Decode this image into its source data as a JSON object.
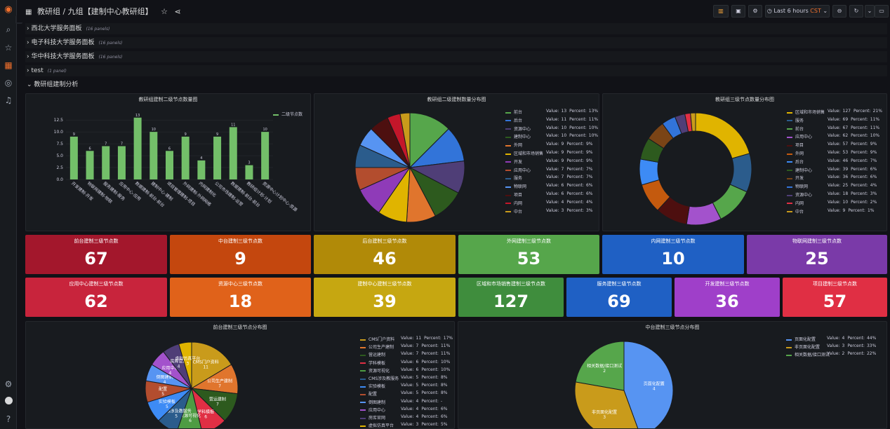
{
  "app": {
    "breadcrumb": "教研组 / 九组【建制中心教研组】",
    "time_range": "Last 6 hours",
    "timezone": "CST"
  },
  "rows": [
    {
      "title": "西北大学服务面板",
      "count": "(16 panels)"
    },
    {
      "title": "电子科技大学服务面板",
      "count": "(16 panels)"
    },
    {
      "title": "华中科技大学服务面板",
      "count": "(16 panels)"
    },
    {
      "title": "test",
      "count": "(1 panel)"
    },
    {
      "title": "教研组建制分析",
      "count": ""
    }
  ],
  "charts": {
    "bar": {
      "title": "教研组建制二级节点数量图",
      "legend": "二级节点数",
      "color": "#73bf69",
      "yticks": [
        "0.0",
        "2.5",
        "5.0",
        "7.5",
        "10.0",
        "12.5"
      ],
      "ymax": 14,
      "categories": [
        "开发建制-开发",
        "物联网建制-物联",
        "服务建制-服务",
        "应用中心-应用",
        "数据建制-前台-前台",
        "建制中心-建制",
        "项目管理建制-项目",
        "外网建制-外网网络",
        "内网建制化",
        "公司市场建制-运营",
        "数据建制-前台-前台",
        "教研组计划-计划",
        "资源中心计划中心-资源"
      ],
      "values": [
        9,
        6,
        7,
        7,
        13,
        10,
        6,
        9,
        4,
        9,
        11,
        3,
        10
      ]
    },
    "pie1": {
      "title": "教研组二级建制数量分布图",
      "slices": [
        {
          "name": "前台",
          "value": 13,
          "percent": "13%",
          "color": "#56a64b"
        },
        {
          "name": "后台",
          "value": 11,
          "percent": "11%",
          "color": "#3274d9"
        },
        {
          "name": "资源中心",
          "value": 10,
          "percent": "10%",
          "color": "#4f3e77"
        },
        {
          "name": "建制中心",
          "value": 10,
          "percent": "10%",
          "color": "#2d5a1e"
        },
        {
          "name": "外网",
          "value": 9,
          "percent": "9%",
          "color": "#e0752d"
        },
        {
          "name": "区域和市场销售",
          "value": 9,
          "percent": "9%",
          "color": "#e0b400"
        },
        {
          "name": "开发",
          "value": 9,
          "percent": "9%",
          "color": "#8f3bb8"
        },
        {
          "name": "应用中心",
          "value": 7,
          "percent": "7%",
          "color": "#b34d2e"
        },
        {
          "name": "服务",
          "value": 7,
          "percent": "7%",
          "color": "#2b5c8c"
        },
        {
          "name": "物联网",
          "value": 6,
          "percent": "6%",
          "color": "#5794f2"
        },
        {
          "name": "项目",
          "value": 6,
          "percent": "6%",
          "color": "#4d0f0f"
        },
        {
          "name": "内网",
          "value": 4,
          "percent": "4%",
          "color": "#c4162a"
        },
        {
          "name": "中台",
          "value": 3,
          "percent": "3%",
          "color": "#c99b1b"
        }
      ]
    },
    "donut": {
      "title": "教研组三级节点数量分布图",
      "slices": [
        {
          "name": "区域和市场销售",
          "value": 127,
          "percent": "21%",
          "color": "#e0b400"
        },
        {
          "name": "服务",
          "value": 69,
          "percent": "11%",
          "color": "#2b5c8c"
        },
        {
          "name": "前台",
          "value": 67,
          "percent": "11%",
          "color": "#56a64b"
        },
        {
          "name": "应用中心",
          "value": 62,
          "percent": "10%",
          "color": "#a352cc"
        },
        {
          "name": "项目",
          "value": 57,
          "percent": "9%",
          "color": "#4d0f0f"
        },
        {
          "name": "外网",
          "value": 53,
          "percent": "9%",
          "color": "#c45a0e"
        },
        {
          "name": "后台",
          "value": 46,
          "percent": "7%",
          "color": "#3d8bf5"
        },
        {
          "name": "建制中心",
          "value": 39,
          "percent": "6%",
          "color": "#2d5a1e"
        },
        {
          "name": "开发",
          "value": 36,
          "percent": "6%",
          "color": "#7a4416"
        },
        {
          "name": "物联网",
          "value": 25,
          "percent": "4%",
          "color": "#3274d9"
        },
        {
          "name": "资源中心",
          "value": 18,
          "percent": "3%",
          "color": "#4f3e77"
        },
        {
          "name": "内网",
          "value": 10,
          "percent": "2%",
          "color": "#e02f44"
        },
        {
          "name": "中台",
          "value": 9,
          "percent": "1%",
          "color": "#c99b1b"
        }
      ]
    },
    "pie2": {
      "title": "前台建制三级节点分布图",
      "slices": [
        {
          "name": "CMS门户资料",
          "value": 11,
          "percent": "17%",
          "color": "#c99b1b"
        },
        {
          "name": "公司生产建制",
          "value": 7,
          "percent": "11%",
          "color": "#e0752d"
        },
        {
          "name": "营运建制",
          "value": 7,
          "percent": "11%",
          "color": "#2d5a1e"
        },
        {
          "name": "学科模板",
          "value": 6,
          "percent": "10%",
          "color": "#e02f44"
        },
        {
          "name": "资源可视化",
          "value": 6,
          "percent": "10%",
          "color": "#4e9c43"
        },
        {
          "name": "CMS涉及教服务",
          "value": 5,
          "percent": "8%",
          "color": "#2b5c8c"
        },
        {
          "name": "实验模板",
          "value": 5,
          "percent": "8%",
          "color": "#3d8bf5"
        },
        {
          "name": "配置",
          "value": 5,
          "percent": "8%",
          "color": "#b34d2e"
        },
        {
          "name": "倒图建制",
          "value": 4,
          "percent": "-",
          "color": "#5794f2"
        },
        {
          "name": "应用中心",
          "value": 4,
          "percent": "6%",
          "color": "#a352cc"
        },
        {
          "name": "房库官网",
          "value": 4,
          "percent": "6%",
          "color": "#4f3e77"
        },
        {
          "name": "虚拟仿真平台",
          "value": 3,
          "percent": "5%",
          "color": "#e0b400"
        }
      ]
    },
    "pie3": {
      "title": "中台建制三级节点分布图",
      "slices": [
        {
          "name": "页面化配置",
          "value": 4,
          "percent": "44%",
          "color": "#5794f2"
        },
        {
          "name": "非页面化配置",
          "value": 3,
          "percent": "33%",
          "color": "#c99b1b"
        },
        {
          "name": "相关数据/接口测试",
          "value": 2,
          "percent": "22%",
          "color": "#56a64b"
        }
      ]
    }
  },
  "stats_row1": [
    {
      "title": "前台建制三级节点数",
      "value": "67",
      "color": "#a3172c"
    },
    {
      "title": "中台建制三级节点数",
      "value": "9",
      "color": "#c4470e"
    },
    {
      "title": "后台建制三级节点数",
      "value": "46",
      "color": "#b18a08"
    },
    {
      "title": "外网建制三级节点数",
      "value": "53",
      "color": "#56a64b"
    },
    {
      "title": "内网建制三级节点数",
      "value": "10",
      "color": "#1f60c4"
    },
    {
      "title": "物联网建制三级节点数",
      "value": "25",
      "color": "#7a3aa8"
    }
  ],
  "stats_row2": [
    {
      "title": "应用中心建制三级节点数",
      "value": "62",
      "color": "#c8243c"
    },
    {
      "title": "资源中心三级节点数",
      "value": "18",
      "color": "#e0621a"
    },
    {
      "title": "建制中心建制三级节点数",
      "value": "39",
      "color": "#c6a711"
    },
    {
      "title": "区域和市场销售建制三级节点数",
      "value": "127",
      "color": "#3f8d3d"
    },
    {
      "title": "服务建制三级节点数",
      "value": "69",
      "color": "#1f60c4"
    },
    {
      "title": "开发建制三级节点数",
      "value": "36",
      "color": "#9f3fc9"
    },
    {
      "title": "项目建制三级节点数",
      "value": "57",
      "color": "#e02f44"
    }
  ],
  "labels": {
    "value_prefix": "Value:",
    "percent_prefix": "Percent:"
  }
}
